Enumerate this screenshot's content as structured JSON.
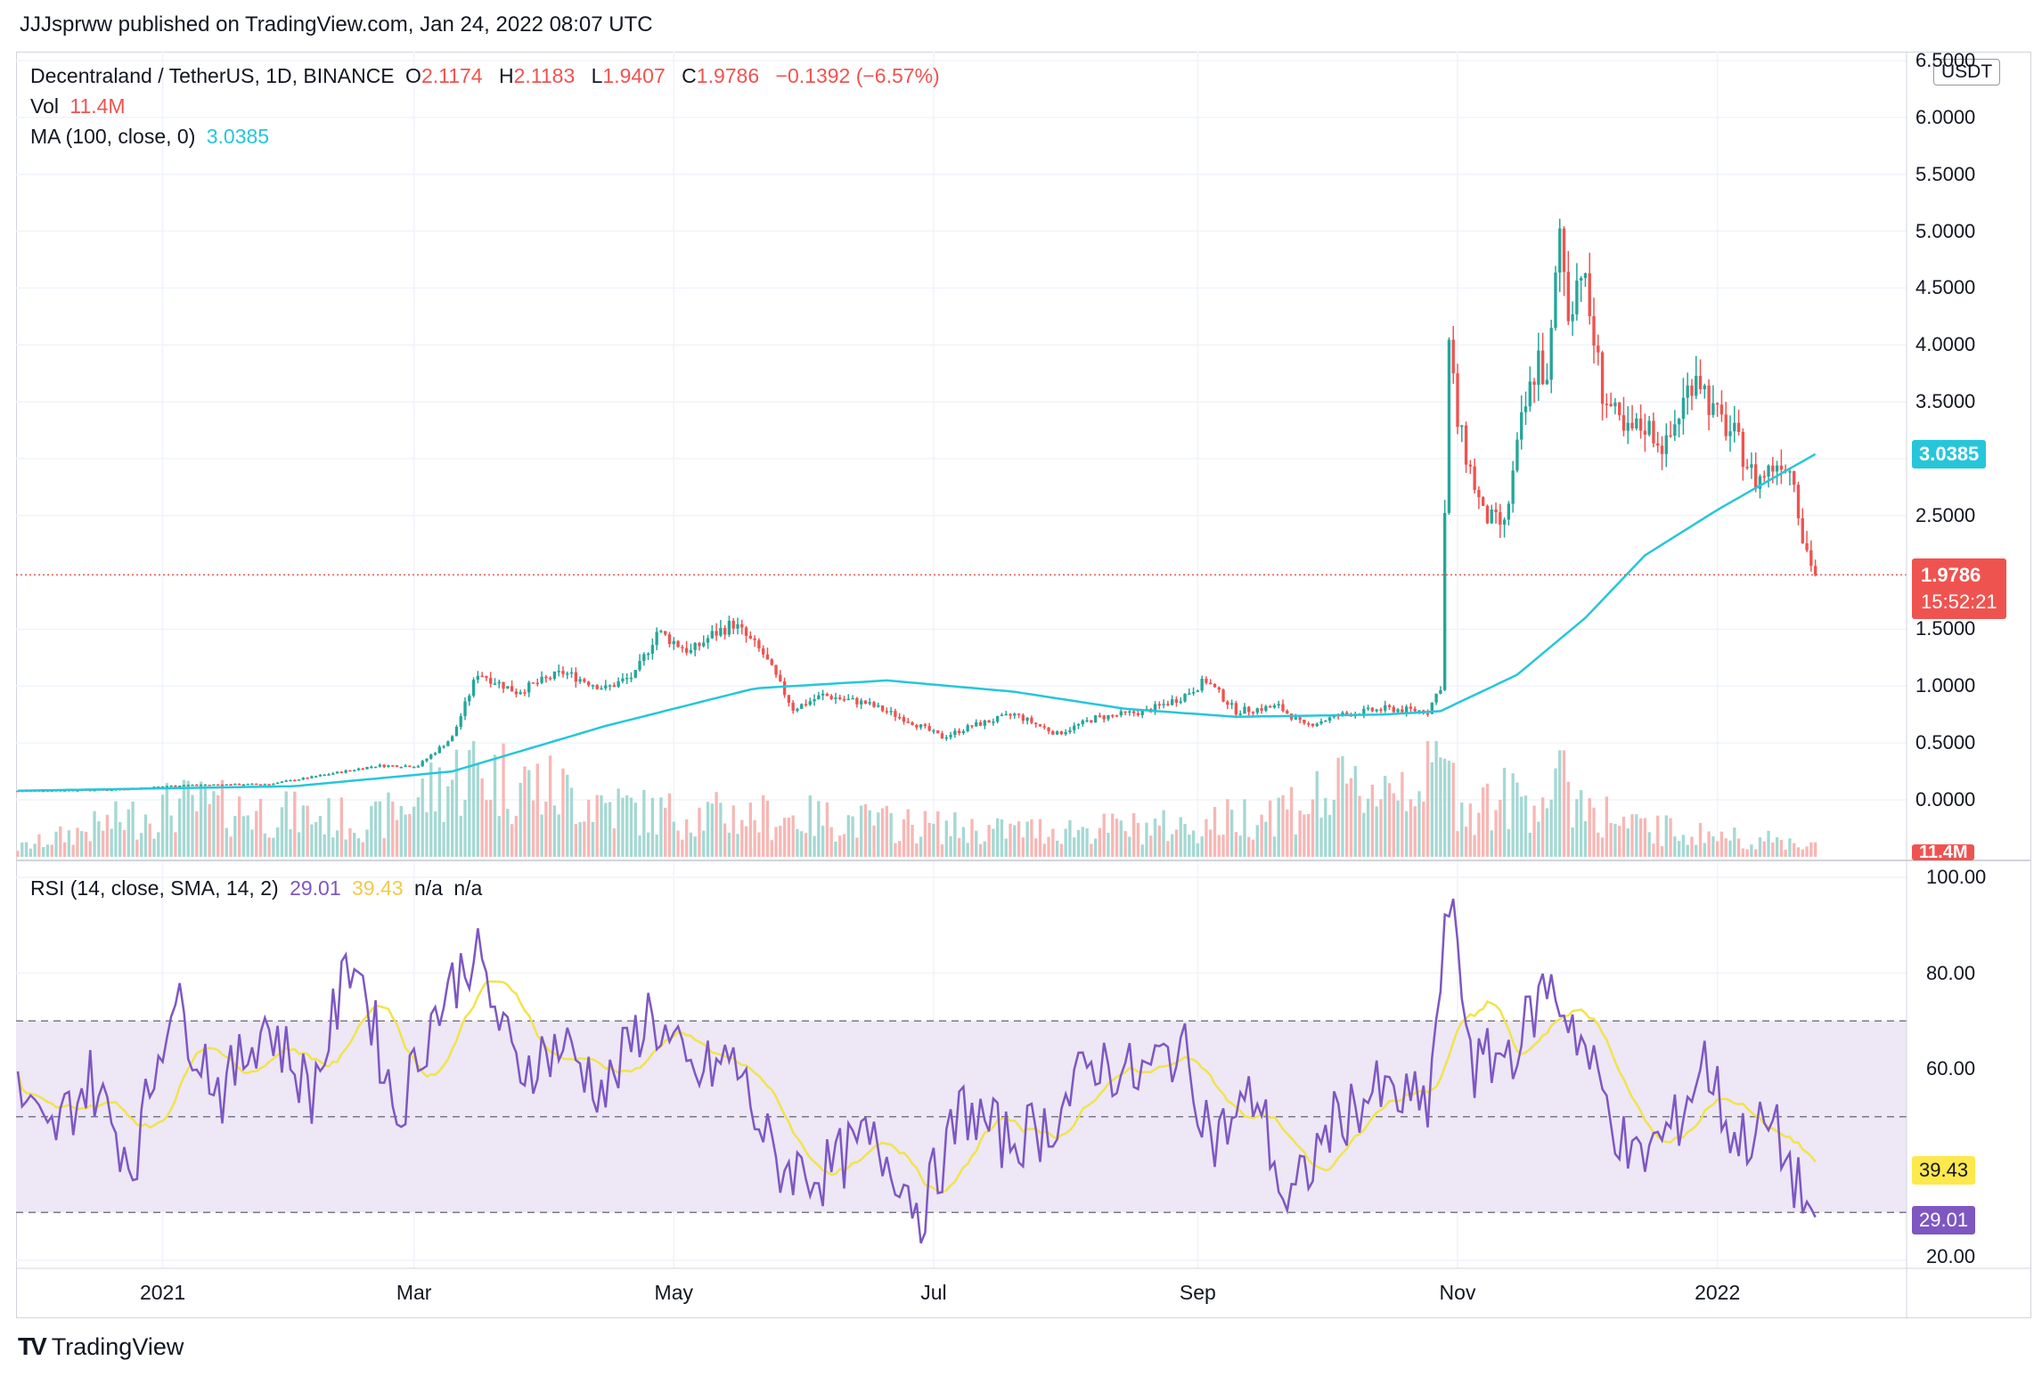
{
  "header": {
    "publish_line": "JJJsprww published on TradingView.com, Jan 24, 2022 08:07 UTC"
  },
  "legend": {
    "symbol": "Decentraland / TetherUS, 1D, BINANCE",
    "open_label": "O",
    "open": "2.1174",
    "high_label": "H",
    "high": "2.1183",
    "low_label": "L",
    "low": "1.9407",
    "close_label": "C",
    "close": "1.9786",
    "change": "−0.1392 (−6.57%)",
    "vol_label": "Vol",
    "vol": "11.4M",
    "ma_label": "MA (100, close, 0)",
    "ma": "3.0385",
    "rsi_label": "RSI (14, close, SMA, 14, 2)",
    "rsi": "29.01",
    "rsi_ma": "39.43",
    "na1": "n/a",
    "na2": "n/a"
  },
  "badges": {
    "currency": "USDT",
    "ma_tag": "3.0385",
    "price_tag": "1.9786",
    "countdown": "15:52:21",
    "volume_tag": "11.4M",
    "rsi_ma_tag": "39.43",
    "rsi_tag": "29.01"
  },
  "colors": {
    "up": "#26a69a",
    "down": "#ef5350",
    "ma": "#26c6da",
    "rsi": "#7e57c2",
    "rsi_ma": "#f2e34c",
    "band": "#ede7f6",
    "grid": "#f0f3fa",
    "vol_up": "#a5d8d3",
    "vol_down": "#f7b7b5"
  },
  "footer": {
    "brand": "TradingView",
    "logo_icon": "tradingview-logo-icon"
  },
  "chart_data": [
    {
      "type": "candlestick",
      "title": "Decentraland / TetherUS, 1D, BINANCE",
      "ylabel": "USDT",
      "ylim": [
        0,
        6.5
      ],
      "y_ticks": [
        "0.0000",
        "0.5000",
        "1.0000",
        "1.5000",
        "2.5000",
        "3.0000",
        "3.5000",
        "4.0000",
        "4.5000",
        "5.0000",
        "5.5000",
        "6.0000",
        "6.5000"
      ],
      "x_ticks": [
        "2021",
        "Mar",
        "May",
        "Jul",
        "Sep",
        "Nov",
        "2022"
      ],
      "x_tick_dates": [
        "2021-01-01",
        "2021-03-01",
        "2021-05-01",
        "2021-07-01",
        "2021-09-01",
        "2021-11-01",
        "2022-01-01"
      ],
      "x_range": [
        "2020-11-28",
        "2022-02-05"
      ],
      "price_keypoints": [
        [
          "2020-11-28",
          0.08
        ],
        [
          "2020-12-20",
          0.09
        ],
        [
          "2021-01-06",
          0.13
        ],
        [
          "2021-01-26",
          0.14
        ],
        [
          "2021-02-05",
          0.2
        ],
        [
          "2021-02-20",
          0.3
        ],
        [
          "2021-03-02",
          0.3
        ],
        [
          "2021-03-10",
          0.55
        ],
        [
          "2021-03-16",
          1.12
        ],
        [
          "2021-03-25",
          0.95
        ],
        [
          "2021-04-05",
          1.12
        ],
        [
          "2021-04-15",
          0.98
        ],
        [
          "2021-04-22",
          1.1
        ],
        [
          "2021-04-27",
          1.48
        ],
        [
          "2021-05-05",
          1.3
        ],
        [
          "2021-05-10",
          1.45
        ],
        [
          "2021-05-15",
          1.55
        ],
        [
          "2021-05-22",
          1.28
        ],
        [
          "2021-05-29",
          0.8
        ],
        [
          "2021-06-05",
          0.92
        ],
        [
          "2021-06-15",
          0.85
        ],
        [
          "2021-06-25",
          0.7
        ],
        [
          "2021-07-03",
          0.55
        ],
        [
          "2021-07-10",
          0.65
        ],
        [
          "2021-07-20",
          0.75
        ],
        [
          "2021-07-30",
          0.58
        ],
        [
          "2021-08-08",
          0.72
        ],
        [
          "2021-08-20",
          0.78
        ],
        [
          "2021-08-28",
          0.9
        ],
        [
          "2021-09-03",
          1.05
        ],
        [
          "2021-09-10",
          0.78
        ],
        [
          "2021-09-20",
          0.82
        ],
        [
          "2021-09-26",
          0.65
        ],
        [
          "2021-10-05",
          0.75
        ],
        [
          "2021-10-15",
          0.8
        ],
        [
          "2021-10-25",
          0.78
        ],
        [
          "2021-10-28",
          1.0
        ],
        [
          "2021-10-30",
          4.0
        ],
        [
          "2021-11-01",
          3.3
        ],
        [
          "2021-11-07",
          2.5
        ],
        [
          "2021-11-12",
          2.4
        ],
        [
          "2021-11-16",
          3.3
        ],
        [
          "2021-11-20",
          3.9
        ],
        [
          "2021-11-22",
          3.6
        ],
        [
          "2021-11-25",
          5.0
        ],
        [
          "2021-11-27",
          4.3
        ],
        [
          "2021-11-30",
          4.7
        ],
        [
          "2021-12-05",
          3.6
        ],
        [
          "2021-12-10",
          3.2
        ],
        [
          "2021-12-15",
          3.3
        ],
        [
          "2021-12-20",
          3.1
        ],
        [
          "2021-12-27",
          3.8
        ],
        [
          "2021-12-31",
          3.4
        ],
        [
          "2022-01-05",
          3.2
        ],
        [
          "2022-01-10",
          2.8
        ],
        [
          "2022-01-16",
          3.0
        ],
        [
          "2022-01-19",
          2.85
        ],
        [
          "2022-01-21",
          2.3
        ],
        [
          "2022-01-24",
          1.98
        ]
      ],
      "ma100_keypoints": [
        [
          "2020-11-28",
          0.08
        ],
        [
          "2021-02-01",
          0.12
        ],
        [
          "2021-03-10",
          0.25
        ],
        [
          "2021-04-15",
          0.65
        ],
        [
          "2021-05-20",
          0.98
        ],
        [
          "2021-06-20",
          1.05
        ],
        [
          "2021-07-20",
          0.95
        ],
        [
          "2021-08-15",
          0.8
        ],
        [
          "2021-09-10",
          0.73
        ],
        [
          "2021-10-15",
          0.75
        ],
        [
          "2021-10-28",
          0.78
        ],
        [
          "2021-11-15",
          1.1
        ],
        [
          "2021-12-01",
          1.6
        ],
        [
          "2021-12-15",
          2.15
        ],
        [
          "2022-01-01",
          2.55
        ],
        [
          "2022-01-24",
          3.04
        ]
      ],
      "last_price": 1.9786,
      "ma_last": 3.0385
    },
    {
      "type": "line",
      "title": "RSI (14, close, SMA, 14, 2)",
      "ylim": [
        20,
        100
      ],
      "y_ticks": [
        "20.00",
        "40.00",
        "60.00",
        "80.00",
        "100.00"
      ],
      "bands": {
        "upper": 70,
        "middle": 50,
        "lower": 30
      },
      "series": [
        {
          "name": "RSI",
          "last": 29.01
        },
        {
          "name": "RSI MA",
          "last": 39.43
        }
      ],
      "rsi_keypoints": [
        [
          "2020-11-28",
          55
        ],
        [
          "2020-12-05",
          45
        ],
        [
          "2020-12-15",
          58
        ],
        [
          "2020-12-25",
          40
        ],
        [
          "2021-01-03",
          75
        ],
        [
          "2021-01-15",
          55
        ],
        [
          "2021-01-25",
          70
        ],
        [
          "2021-02-05",
          55
        ],
        [
          "2021-02-15",
          85
        ],
        [
          "2021-02-25",
          50
        ],
        [
          "2021-03-05",
          70
        ],
        [
          "2021-03-15",
          85
        ],
        [
          "2021-03-25",
          60
        ],
        [
          "2021-04-05",
          65
        ],
        [
          "2021-04-15",
          55
        ],
        [
          "2021-04-25",
          72
        ],
        [
          "2021-05-05",
          58
        ],
        [
          "2021-05-15",
          62
        ],
        [
          "2021-05-25",
          40
        ],
        [
          "2021-06-05",
          38
        ],
        [
          "2021-06-15",
          45
        ],
        [
          "2021-06-22",
          40
        ],
        [
          "2021-06-28",
          30
        ],
        [
          "2021-07-08",
          52
        ],
        [
          "2021-07-18",
          45
        ],
        [
          "2021-07-28",
          48
        ],
        [
          "2021-08-08",
          62
        ],
        [
          "2021-08-18",
          58
        ],
        [
          "2021-08-28",
          65
        ],
        [
          "2021-09-05",
          45
        ],
        [
          "2021-09-15",
          55
        ],
        [
          "2021-09-22",
          30
        ],
        [
          "2021-10-02",
          48
        ],
        [
          "2021-10-12",
          55
        ],
        [
          "2021-10-25",
          52
        ],
        [
          "2021-10-30",
          95
        ],
        [
          "2021-11-05",
          60
        ],
        [
          "2021-11-15",
          65
        ],
        [
          "2021-11-22",
          78
        ],
        [
          "2021-11-28",
          70
        ],
        [
          "2021-12-05",
          55
        ],
        [
          "2021-12-12",
          40
        ],
        [
          "2021-12-22",
          48
        ],
        [
          "2021-12-29",
          62
        ],
        [
          "2022-01-05",
          45
        ],
        [
          "2022-01-14",
          48
        ],
        [
          "2022-01-20",
          35
        ],
        [
          "2022-01-24",
          29
        ]
      ]
    },
    {
      "type": "bar",
      "title": "Vol",
      "last": "11.4M",
      "volume_keypoints": [
        [
          "2020-11-28",
          0.1
        ],
        [
          "2021-01-05",
          0.6
        ],
        [
          "2021-02-20",
          0.4
        ],
        [
          "2021-03-14",
          1.0
        ],
        [
          "2021-04-25",
          0.5
        ],
        [
          "2021-06-01",
          0.45
        ],
        [
          "2021-07-15",
          0.3
        ],
        [
          "2021-09-01",
          0.35
        ],
        [
          "2021-10-29",
          1.0
        ],
        [
          "2021-11-02",
          0.6
        ],
        [
          "2021-11-20",
          0.7
        ],
        [
          "2021-11-26",
          0.8
        ],
        [
          "2021-12-10",
          0.35
        ],
        [
          "2022-01-10",
          0.2
        ],
        [
          "2022-01-24",
          0.15
        ]
      ]
    }
  ]
}
